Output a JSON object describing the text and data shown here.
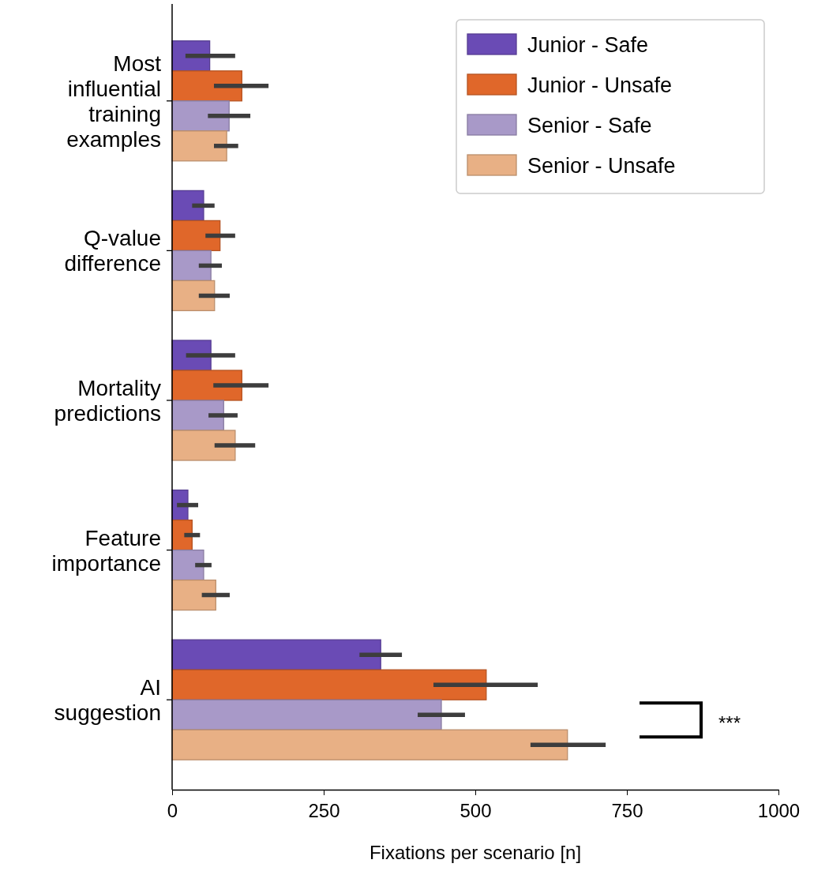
{
  "chart_data": {
    "type": "bar",
    "orientation": "horizontal",
    "xlabel": "Fixations per scenario [n]",
    "categories": [
      "Most influential training examples",
      "Q-value difference",
      "Mortality predictions",
      "Feature importance",
      "AI suggestion"
    ],
    "series": [
      {
        "name": "Junior - Safe",
        "color": "#6a4bb5",
        "values": [
          62,
          52,
          64,
          26,
          344
        ],
        "errors": [
          [
            22,
            104
          ],
          [
            33,
            70
          ],
          [
            23,
            104
          ],
          [
            8,
            43
          ],
          [
            309,
            379
          ]
        ]
      },
      {
        "name": "Junior - Unsafe",
        "color": "#e0672a",
        "values": [
          115,
          79,
          115,
          33,
          518
        ],
        "errors": [
          [
            69,
            159
          ],
          [
            55,
            104
          ],
          [
            68,
            159
          ],
          [
            20,
            46
          ],
          [
            431,
            603
          ]
        ]
      },
      {
        "name": "Senior - Safe",
        "color": "#a899c8",
        "values": [
          94,
          64,
          85,
          52,
          444
        ],
        "errors": [
          [
            59,
            129
          ],
          [
            44,
            82
          ],
          [
            60,
            108
          ],
          [
            38,
            65
          ],
          [
            405,
            483
          ]
        ]
      },
      {
        "name": "Senior - Unsafe",
        "color": "#e8b085",
        "values": [
          90,
          70,
          104,
          72,
          652
        ],
        "errors": [
          [
            69,
            109
          ],
          [
            44,
            95
          ],
          [
            70,
            137
          ],
          [
            49,
            95
          ],
          [
            591,
            715
          ]
        ]
      }
    ],
    "xlim": [
      0,
      1000
    ],
    "xticks": [
      0,
      250,
      500,
      750,
      1000
    ],
    "legend": "top right",
    "grid": false,
    "annotations": [
      "***"
    ]
  }
}
